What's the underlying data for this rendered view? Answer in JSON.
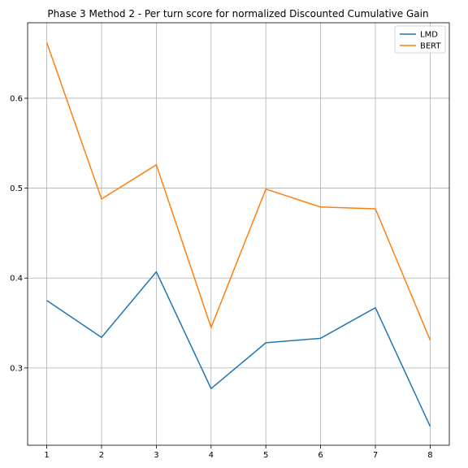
{
  "chart_data": {
    "type": "line",
    "title": "Phase 3 Method 2 - Per turn score for normalized Discounted Cumulative Gain",
    "xlabel": "",
    "ylabel": "",
    "x": [
      1,
      2,
      3,
      4,
      5,
      6,
      7,
      8
    ],
    "xticks": [
      1,
      2,
      3,
      4,
      5,
      6,
      7,
      8
    ],
    "yticks": [
      0.3,
      0.4,
      0.5,
      0.6
    ],
    "xlim": [
      0.65,
      8.35
    ],
    "ylim": [
      0.214,
      0.684
    ],
    "grid": true,
    "legend_position": "top-right",
    "series": [
      {
        "name": "LMD",
        "color": "#1f77b4",
        "values": [
          0.375,
          0.334,
          0.407,
          0.277,
          0.328,
          0.333,
          0.367,
          0.235
        ]
      },
      {
        "name": "BERT",
        "color": "#ff7f0e",
        "values": [
          0.662,
          0.488,
          0.526,
          0.345,
          0.499,
          0.479,
          0.477,
          0.331
        ]
      }
    ]
  }
}
